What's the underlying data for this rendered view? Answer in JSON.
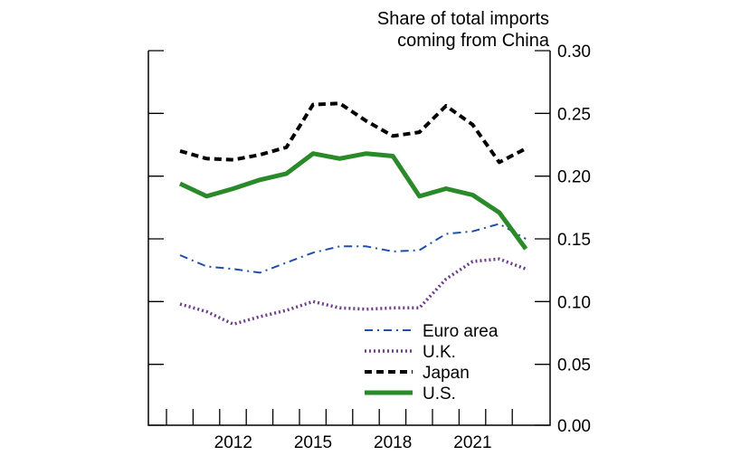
{
  "chart_data": {
    "type": "line",
    "title": "Share of total imports coming from China",
    "title_lines": [
      "Share of total imports",
      "coming from China"
    ],
    "xlabel": "",
    "ylabel": "",
    "x": [
      2010,
      2011,
      2012,
      2013,
      2014,
      2015,
      2016,
      2017,
      2018,
      2019,
      2020,
      2021,
      2022,
      2023
    ],
    "xticks": [
      "2012",
      "2015",
      "2018",
      "2021"
    ],
    "xtick_values": [
      2012,
      2015,
      2018,
      2021
    ],
    "xlim": [
      2009,
      2024
    ],
    "ylim": [
      0,
      0.3
    ],
    "yticks": [
      "0.00",
      "0.05",
      "0.10",
      "0.15",
      "0.20",
      "0.25",
      "0.30"
    ],
    "ytick_values": [
      0,
      0.05,
      0.1,
      0.15,
      0.2,
      0.25,
      0.3
    ],
    "legend_position": "bottom-right",
    "series": [
      {
        "name": "Euro area",
        "color": "#1f4fa8",
        "style": "dashdot",
        "values": [
          0.137,
          0.128,
          0.126,
          0.123,
          0.131,
          0.139,
          0.144,
          0.144,
          0.14,
          0.141,
          0.154,
          0.156,
          0.162,
          0.15
        ]
      },
      {
        "name": "U.K.",
        "color": "#6b3f8a",
        "style": "dotted",
        "values": [
          0.098,
          0.092,
          0.082,
          0.088,
          0.093,
          0.1,
          0.095,
          0.094,
          0.095,
          0.095,
          0.118,
          0.132,
          0.134,
          0.126
        ]
      },
      {
        "name": "Japan",
        "color": "#000000",
        "style": "dashed",
        "values": [
          0.22,
          0.214,
          0.213,
          0.217,
          0.223,
          0.257,
          0.258,
          0.244,
          0.232,
          0.235,
          0.256,
          0.241,
          0.211,
          0.222
        ]
      },
      {
        "name": "U.S.",
        "color": "#2a8a2a",
        "style": "solid",
        "values": [
          0.194,
          0.184,
          0.19,
          0.197,
          0.202,
          0.218,
          0.214,
          0.218,
          0.216,
          0.184,
          0.19,
          0.185,
          0.171,
          0.142
        ]
      }
    ]
  }
}
